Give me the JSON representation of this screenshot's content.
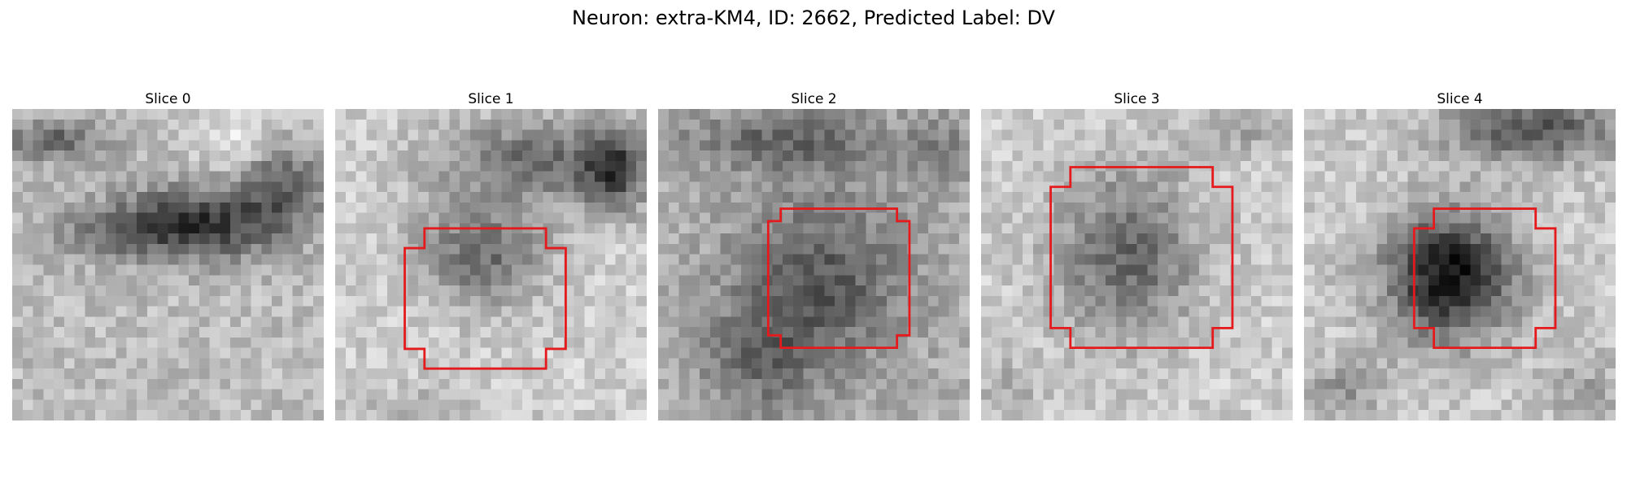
{
  "figure": {
    "title": "Neuron: extra-KM4, ID: 2662, Predicted Label: DV",
    "colormap": "grayscale",
    "contour_color": "#e41a1c"
  },
  "slices": [
    {
      "title": "Slice 0",
      "has_contour": false
    },
    {
      "title": "Slice 1",
      "has_contour": true
    },
    {
      "title": "Slice 2",
      "has_contour": true
    },
    {
      "title": "Slice 3",
      "has_contour": true
    },
    {
      "title": "Slice 4",
      "has_contour": true
    }
  ]
}
